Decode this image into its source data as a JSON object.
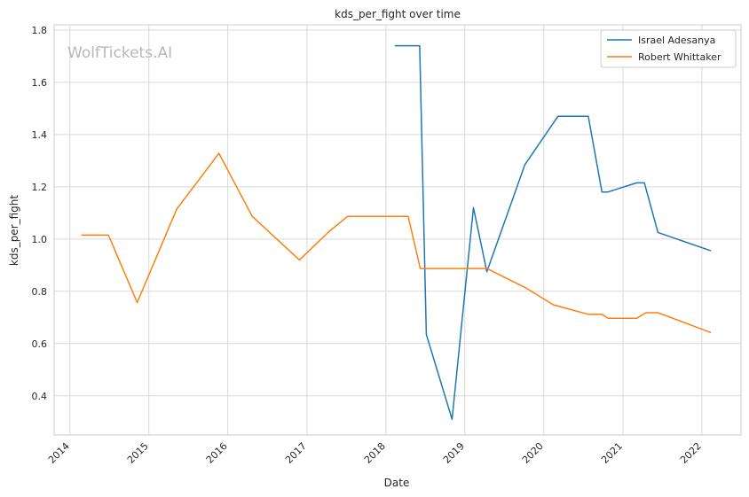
{
  "chart_data": {
    "type": "line",
    "title": "kds_per_fight over time",
    "xlabel": "Date",
    "ylabel": "kds_per_fight",
    "watermark": "WolfTickets.AI",
    "x_ticks": [
      "2014",
      "2015",
      "2016",
      "2017",
      "2018",
      "2019",
      "2020",
      "2021",
      "2022"
    ],
    "y_ticks": [
      "0.4",
      "0.6",
      "0.8",
      "1.0",
      "1.2",
      "1.4",
      "1.6",
      "1.8"
    ],
    "xlim": [
      "2013-10-20",
      "2022-07-01"
    ],
    "ylim": [
      0.25,
      1.82
    ],
    "grid": true,
    "legend_position": "top-right",
    "series": [
      {
        "name": "Israel Adesanya",
        "color": "#1f77b4",
        "points": [
          [
            "2018-02-11",
            1.74
          ],
          [
            "2018-06-06",
            1.74
          ],
          [
            "2018-07-07",
            0.635
          ],
          [
            "2018-11-03",
            0.31
          ],
          [
            "2019-02-10",
            1.12
          ],
          [
            "2019-04-13",
            0.875
          ],
          [
            "2019-10-06",
            1.285
          ],
          [
            "2020-03-07",
            1.47
          ],
          [
            "2020-07-25",
            1.47
          ],
          [
            "2020-09-26",
            1.18
          ],
          [
            "2020-10-24",
            1.18
          ],
          [
            "2021-03-06",
            1.215
          ],
          [
            "2021-04-10",
            1.215
          ],
          [
            "2021-06-12",
            1.025
          ],
          [
            "2022-02-12",
            0.955
          ]
        ]
      },
      {
        "name": "Robert Whittaker",
        "color": "#ff7f0e",
        "points": [
          [
            "2014-02-22",
            1.015
          ],
          [
            "2014-06-28",
            1.015
          ],
          [
            "2014-11-08",
            0.757
          ],
          [
            "2015-05-10",
            1.115
          ],
          [
            "2015-11-21",
            1.328
          ],
          [
            "2016-04-23",
            1.087
          ],
          [
            "2016-11-27",
            0.92
          ],
          [
            "2017-04-15",
            1.03
          ],
          [
            "2017-07-08",
            1.087
          ],
          [
            "2018-04-14",
            1.087
          ],
          [
            "2018-06-09",
            0.887
          ],
          [
            "2019-04-13",
            0.887
          ],
          [
            "2019-10-06",
            0.815
          ],
          [
            "2020-02-15",
            0.748
          ],
          [
            "2020-07-25",
            0.712
          ],
          [
            "2020-09-26",
            0.712
          ],
          [
            "2020-10-24",
            0.697
          ],
          [
            "2021-03-06",
            0.697
          ],
          [
            "2021-04-17",
            0.718
          ],
          [
            "2021-06-12",
            0.718
          ],
          [
            "2022-02-12",
            0.642
          ]
        ]
      }
    ]
  }
}
